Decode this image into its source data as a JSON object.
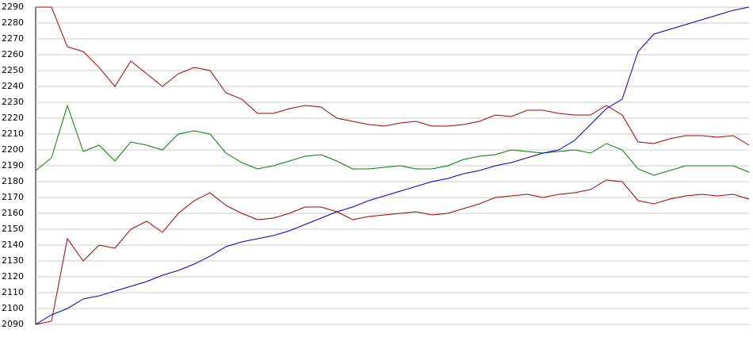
{
  "chart_data": {
    "type": "line",
    "ylim": [
      2090,
      2290
    ],
    "yticks": [
      2090,
      2100,
      2110,
      2120,
      2130,
      2140,
      2150,
      2160,
      2170,
      2180,
      2190,
      2200,
      2210,
      2220,
      2230,
      2240,
      2250,
      2260,
      2270,
      2280,
      2290
    ],
    "grid": true,
    "series": [
      {
        "color": "#a00000",
        "values": [
          2290,
          2290,
          2265,
          2262,
          2252,
          2240,
          2256,
          2248,
          2240,
          2248,
          2252,
          2250,
          2236,
          2232,
          2223,
          2223,
          2226,
          2228,
          2227,
          2220,
          2218,
          2216,
          2215,
          2217,
          2218,
          2215,
          2215,
          2216,
          2218,
          2222,
          2221,
          2225,
          2225,
          2223,
          2222,
          2222,
          2228,
          2222,
          2205,
          2204,
          2207,
          2209,
          2209,
          2208,
          2209,
          2203
        ]
      },
      {
        "color": "#008000",
        "values": [
          2187,
          2195,
          2228,
          2199,
          2203,
          2193,
          2205,
          2203,
          2200,
          2210,
          2212,
          2210,
          2198,
          2192,
          2188,
          2190,
          2193,
          2196,
          2197,
          2193,
          2188,
          2188,
          2189,
          2190,
          2188,
          2188,
          2190,
          2194,
          2196,
          2197,
          2200,
          2199,
          2198,
          2199,
          2200,
          2198,
          2204,
          2200,
          2188,
          2184,
          2187,
          2190,
          2190,
          2190,
          2190,
          2186
        ]
      },
      {
        "color": "#a00000",
        "values": [
          2090,
          2092,
          2144,
          2130,
          2140,
          2138,
          2150,
          2155,
          2148,
          2160,
          2168,
          2173,
          2165,
          2160,
          2156,
          2157,
          2160,
          2164,
          2164,
          2161,
          2156,
          2158,
          2159,
          2160,
          2161,
          2159,
          2160,
          2163,
          2166,
          2170,
          2171,
          2172,
          2170,
          2172,
          2173,
          2175,
          2181,
          2180,
          2168,
          2166,
          2169,
          2171,
          2172,
          2171,
          2172,
          2169
        ]
      },
      {
        "color": "#0000c0",
        "values": [
          2090,
          2096,
          2100,
          2106,
          2108,
          2111,
          2114,
          2117,
          2121,
          2124,
          2128,
          2133,
          2139,
          2142,
          2144,
          2146,
          2149,
          2153,
          2157,
          2161,
          2164,
          2168,
          2171,
          2174,
          2177,
          2180,
          2182,
          2185,
          2187,
          2190,
          2192,
          2195,
          2198,
          2200,
          2206,
          2216,
          2226,
          2232,
          2262,
          2273,
          2276,
          2279,
          2282,
          2285,
          2288,
          2290
        ]
      }
    ]
  }
}
